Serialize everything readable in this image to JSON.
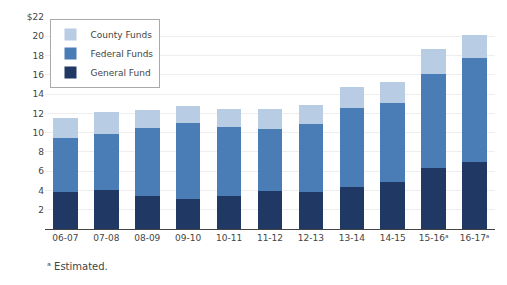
{
  "chart_data": {
    "type": "bar",
    "stacked": true,
    "categories": [
      "06-07",
      "07-08",
      "08-09",
      "09-10",
      "10-11",
      "11-12",
      "12-13",
      "13-14",
      "14-15",
      "15-16ᵃ",
      "16-17ᵃ"
    ],
    "series": [
      {
        "name": "General Fund",
        "color": "#1f3864",
        "values": [
          3.8,
          4.0,
          3.4,
          3.1,
          3.4,
          3.9,
          3.8,
          4.4,
          4.9,
          6.3,
          7.0
        ]
      },
      {
        "name": "Federal Funds",
        "color": "#4a7db5",
        "values": [
          5.6,
          5.9,
          7.1,
          7.9,
          7.2,
          6.5,
          7.1,
          8.2,
          8.2,
          9.8,
          10.7
        ]
      },
      {
        "name": "County Funds",
        "color": "#b8cce4",
        "values": [
          2.1,
          2.2,
          1.8,
          1.8,
          1.9,
          2.1,
          2.0,
          2.1,
          2.2,
          2.6,
          2.4
        ]
      }
    ],
    "ylim": [
      0,
      22
    ],
    "yticks": [
      2,
      4,
      6,
      8,
      10,
      12,
      14,
      16,
      18,
      20,
      {
        "value": 22,
        "label": "$22"
      }
    ],
    "grid": true,
    "legend": "upper left",
    "annotations": [
      "ᵃ Estimated."
    ]
  }
}
